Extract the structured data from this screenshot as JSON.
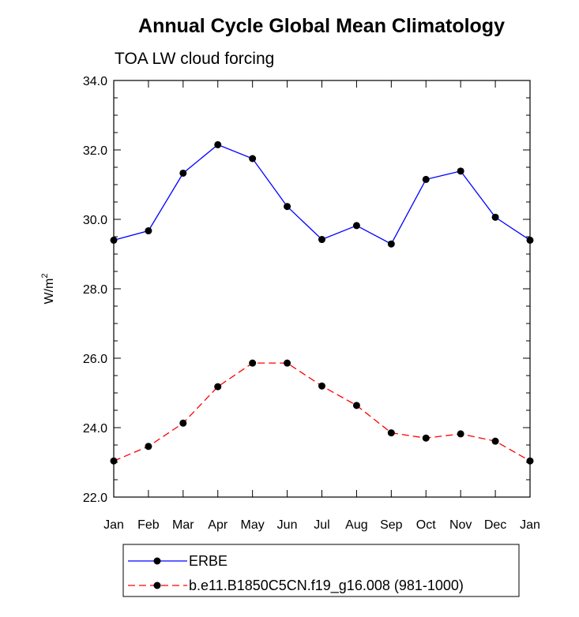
{
  "chart_data": {
    "type": "line",
    "title": "Annual Cycle Global Mean Climatology",
    "subtitle": "TOA LW cloud forcing",
    "ylabel": "W/m",
    "ylabel_superscript": "2",
    "ylim": [
      22.0,
      34.0
    ],
    "yticks": [
      "22.0",
      "24.0",
      "26.0",
      "28.0",
      "30.0",
      "32.0",
      "34.0"
    ],
    "categories": [
      "Jan",
      "Feb",
      "Mar",
      "Apr",
      "May",
      "Jun",
      "Jul",
      "Aug",
      "Sep",
      "Oct",
      "Nov",
      "Dec",
      "Jan"
    ],
    "grid": false,
    "legend_position": "bottom",
    "series": [
      {
        "name": "ERBE",
        "color": "#0000ff",
        "line_style": "solid",
        "marker": "filled-circle",
        "values": [
          29.4,
          29.67,
          31.33,
          32.15,
          31.75,
          30.37,
          29.42,
          29.82,
          29.29,
          31.15,
          31.39,
          30.06,
          29.4
        ]
      },
      {
        "name": "b.e11.B1850C5CN.f19_g16.008 (981-1000)",
        "color": "#ff0000",
        "line_style": "dashed",
        "marker": "filled-circle",
        "values": [
          23.04,
          23.46,
          24.13,
          25.18,
          25.86,
          25.86,
          25.2,
          24.64,
          23.85,
          23.7,
          23.82,
          23.61,
          23.04
        ]
      }
    ]
  }
}
